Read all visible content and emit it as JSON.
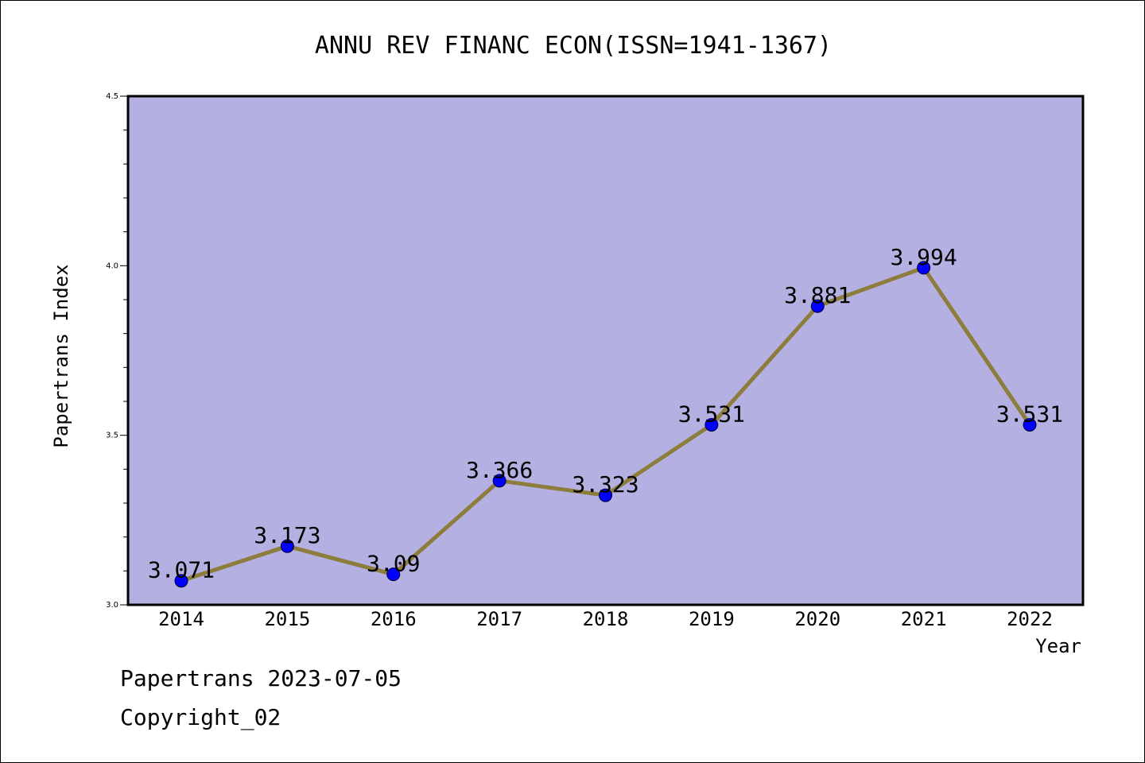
{
  "chart_data": {
    "type": "line",
    "title": "ANNU REV FINANC ECON(ISSN=1941-1367)",
    "xlabel": "Year",
    "ylabel": "Papertrans Index",
    "x": [
      "2014",
      "2015",
      "2016",
      "2017",
      "2018",
      "2019",
      "2020",
      "2021",
      "2022"
    ],
    "series": [
      {
        "values": [
          3.071,
          3.173,
          3.09,
          3.366,
          3.323,
          3.531,
          3.881,
          3.994,
          3.531
        ],
        "labels": [
          "3.071",
          "3.173",
          "3.09",
          "3.366",
          "3.323",
          "3.531",
          "3.881",
          "3.994",
          "3.531"
        ]
      }
    ],
    "ylim": [
      3.0,
      4.5
    ],
    "yticks": [
      "3.0",
      "3.5",
      "4.0",
      "4.5"
    ],
    "grid": false,
    "legend": "none",
    "colors": {
      "plot_background": "#b5b0e2",
      "line": "#8c7d3c",
      "marker": "#0000ff"
    }
  },
  "footer": {
    "source": "Papertrans 2023-07-05",
    "copyright": "Copyright_02"
  }
}
